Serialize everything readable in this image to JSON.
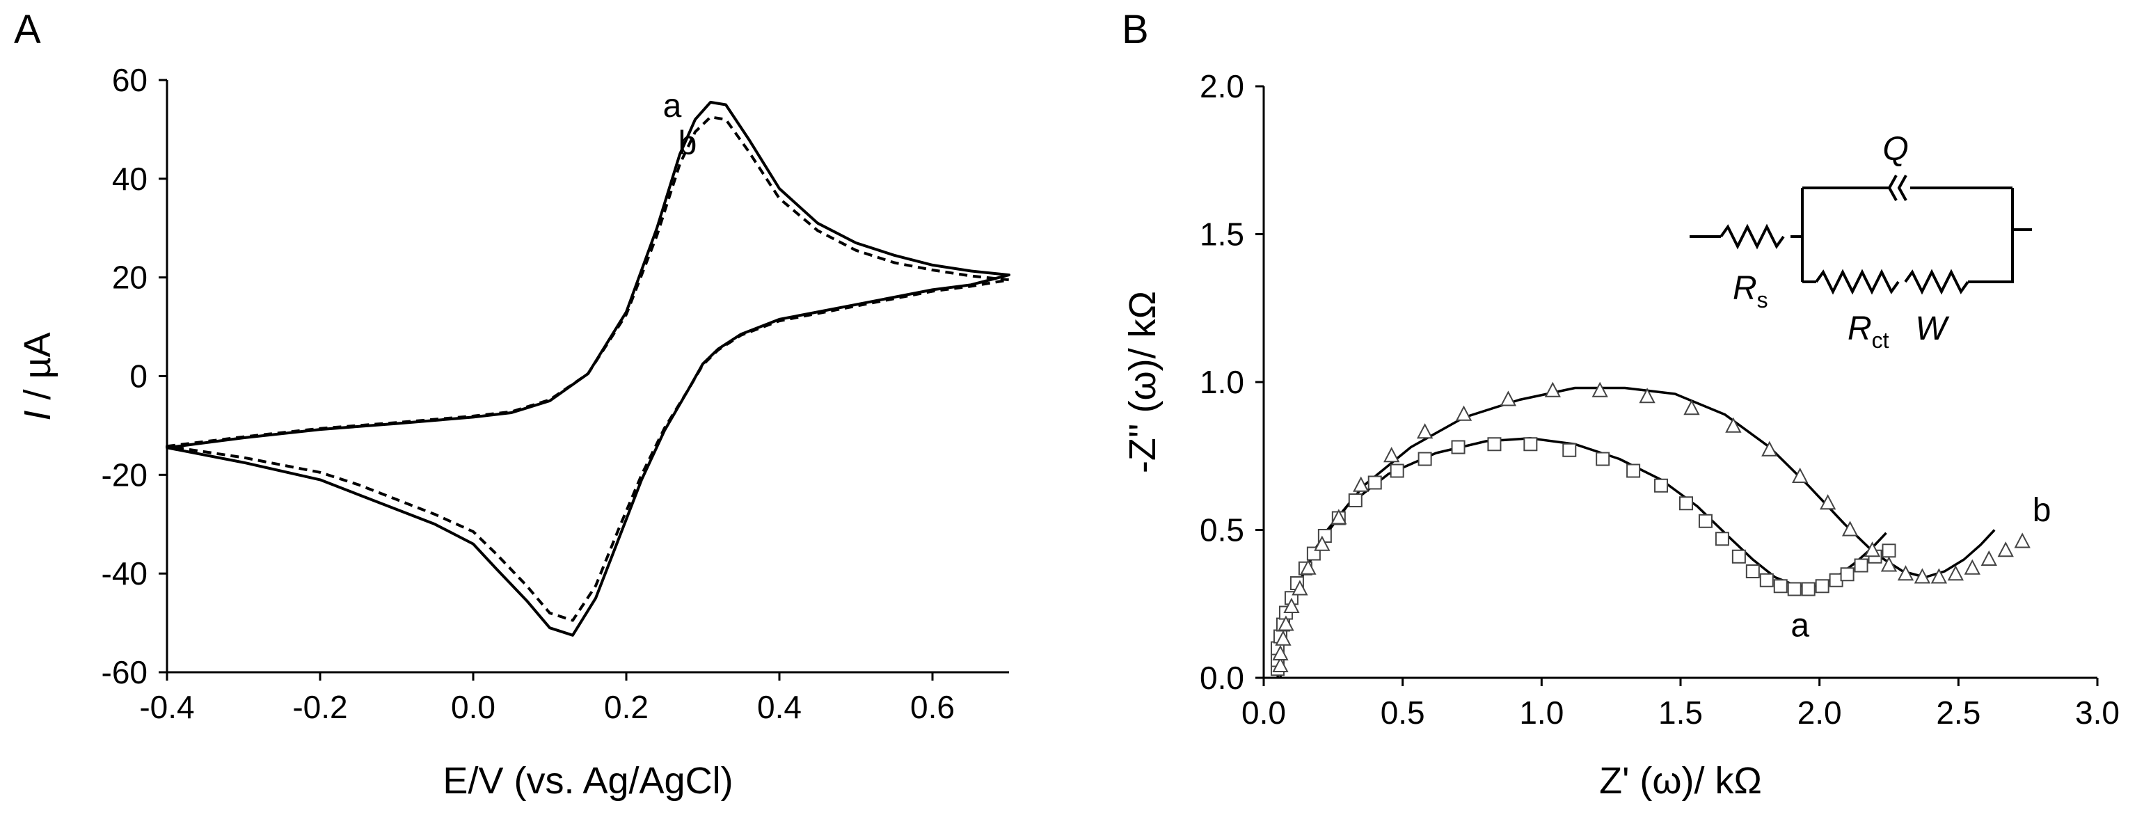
{
  "panels": {
    "a": "A",
    "b": "B"
  },
  "chart_data": [
    {
      "type": "line",
      "panel": "A",
      "xlabel": "E/V (vs. Ag/AgCl)",
      "ylabel_italic": "I",
      "ylabel_rest": " / µA",
      "xlim": [
        -0.4,
        0.7
      ],
      "ylim": [
        -60,
        60
      ],
      "xticks": [
        -0.4,
        -0.2,
        0.0,
        0.2,
        0.4,
        0.6
      ],
      "xtick_labels": [
        "-0.4",
        "-0.2",
        "0.0",
        "0.2",
        "0.4",
        "0.6"
      ],
      "yticks": [
        -60,
        -40,
        -20,
        0,
        20,
        40,
        60
      ],
      "ytick_labels": [
        "-60",
        "-40",
        "-20",
        "0",
        "20",
        "40",
        "60"
      ],
      "series": [
        {
          "name": "a",
          "style": "solid",
          "points": [
            [
              -0.4,
              -14.5
            ],
            [
              -0.3,
              -12.5
            ],
            [
              -0.2,
              -10.8
            ],
            [
              -0.1,
              -9.6
            ],
            [
              0.0,
              -8.3
            ],
            [
              0.05,
              -7.4
            ],
            [
              0.1,
              -5.0
            ],
            [
              0.15,
              0.5
            ],
            [
              0.2,
              13
            ],
            [
              0.24,
              30
            ],
            [
              0.27,
              45
            ],
            [
              0.29,
              52
            ],
            [
              0.31,
              55.5
            ],
            [
              0.33,
              55
            ],
            [
              0.36,
              48
            ],
            [
              0.4,
              38
            ],
            [
              0.45,
              31
            ],
            [
              0.5,
              27
            ],
            [
              0.55,
              24.5
            ],
            [
              0.6,
              22.5
            ],
            [
              0.65,
              21.3
            ],
            [
              0.7,
              20.5
            ],
            [
              0.65,
              18.5
            ],
            [
              0.6,
              17.5
            ],
            [
              0.5,
              14.5
            ],
            [
              0.4,
              11.5
            ],
            [
              0.35,
              8.5
            ],
            [
              0.32,
              5.5
            ],
            [
              0.3,
              2.5
            ],
            [
              0.28,
              -3
            ],
            [
              0.25,
              -11
            ],
            [
              0.22,
              -21
            ],
            [
              0.19,
              -33
            ],
            [
              0.16,
              -45
            ],
            [
              0.13,
              -52.5
            ],
            [
              0.1,
              -51
            ],
            [
              0.07,
              -45.5
            ],
            [
              0.03,
              -39
            ],
            [
              0.0,
              -34
            ],
            [
              -0.05,
              -30
            ],
            [
              -0.1,
              -27
            ],
            [
              -0.15,
              -24
            ],
            [
              -0.2,
              -21
            ],
            [
              -0.3,
              -17.5
            ],
            [
              -0.4,
              -14.5
            ]
          ]
        },
        {
          "name": "b",
          "style": "dashed",
          "points": [
            [
              -0.4,
              -14.2
            ],
            [
              -0.3,
              -12.3
            ],
            [
              -0.2,
              -10.6
            ],
            [
              -0.1,
              -9.4
            ],
            [
              0.0,
              -8.1
            ],
            [
              0.05,
              -7.2
            ],
            [
              0.1,
              -4.8
            ],
            [
              0.15,
              0.5
            ],
            [
              0.2,
              12.5
            ],
            [
              0.24,
              28.5
            ],
            [
              0.27,
              43
            ],
            [
              0.29,
              49.5
            ],
            [
              0.31,
              52.5
            ],
            [
              0.33,
              52
            ],
            [
              0.36,
              45.5
            ],
            [
              0.4,
              36
            ],
            [
              0.45,
              29.5
            ],
            [
              0.5,
              25.5
            ],
            [
              0.55,
              23
            ],
            [
              0.6,
              21.5
            ],
            [
              0.65,
              20.3
            ],
            [
              0.7,
              19.5
            ],
            [
              0.65,
              18.2
            ],
            [
              0.6,
              17.2
            ],
            [
              0.5,
              14.2
            ],
            [
              0.4,
              11.2
            ],
            [
              0.35,
              8.3
            ],
            [
              0.32,
              5.3
            ],
            [
              0.3,
              2.3
            ],
            [
              0.28,
              -3
            ],
            [
              0.25,
              -10.5
            ],
            [
              0.22,
              -20
            ],
            [
              0.19,
              -31
            ],
            [
              0.16,
              -42.5
            ],
            [
              0.13,
              -49.5
            ],
            [
              0.1,
              -48
            ],
            [
              0.07,
              -42.5
            ],
            [
              0.03,
              -36
            ],
            [
              0.0,
              -31.5
            ],
            [
              -0.05,
              -28
            ],
            [
              -0.1,
              -25
            ],
            [
              -0.15,
              -22
            ],
            [
              -0.2,
              -19.5
            ],
            [
              -0.3,
              -16.5
            ],
            [
              -0.4,
              -14.2
            ]
          ]
        }
      ],
      "annotations": [
        {
          "text": "a",
          "x": 0.26,
          "y": 52.5
        },
        {
          "text": "b",
          "x": 0.28,
          "y": 45
        }
      ]
    },
    {
      "type": "scatter",
      "panel": "B",
      "xlabel": "Z' (ω)/ kΩ",
      "ylabel": "-Z'' (ω)/ kΩ",
      "xlim": [
        0.0,
        3.0
      ],
      "ylim": [
        0.0,
        2.0
      ],
      "xticks": [
        0.0,
        0.5,
        1.0,
        1.5,
        2.0,
        2.5,
        3.0
      ],
      "xtick_labels": [
        "0.0",
        "0.5",
        "1.0",
        "1.5",
        "2.0",
        "2.5",
        "3.0"
      ],
      "yticks": [
        0.0,
        0.5,
        1.0,
        1.5,
        2.0
      ],
      "ytick_labels": [
        "0.0",
        "0.5",
        "1.0",
        "1.5",
        "2.0"
      ],
      "series": [
        {
          "name": "a",
          "marker": "square",
          "points": [
            [
              0.05,
              0.03
            ],
            [
              0.05,
              0.06
            ],
            [
              0.05,
              0.1
            ],
            [
              0.06,
              0.14
            ],
            [
              0.07,
              0.18
            ],
            [
              0.08,
              0.22
            ],
            [
              0.1,
              0.27
            ],
            [
              0.12,
              0.32
            ],
            [
              0.15,
              0.37
            ],
            [
              0.18,
              0.42
            ],
            [
              0.22,
              0.48
            ],
            [
              0.27,
              0.54
            ],
            [
              0.33,
              0.6
            ],
            [
              0.4,
              0.66
            ],
            [
              0.48,
              0.7
            ],
            [
              0.58,
              0.74
            ],
            [
              0.7,
              0.78
            ],
            [
              0.83,
              0.79
            ],
            [
              0.96,
              0.79
            ],
            [
              1.1,
              0.77
            ],
            [
              1.22,
              0.74
            ],
            [
              1.33,
              0.7
            ],
            [
              1.43,
              0.65
            ],
            [
              1.52,
              0.59
            ],
            [
              1.59,
              0.53
            ],
            [
              1.65,
              0.47
            ],
            [
              1.71,
              0.41
            ],
            [
              1.76,
              0.36
            ],
            [
              1.81,
              0.33
            ],
            [
              1.86,
              0.31
            ],
            [
              1.91,
              0.3
            ],
            [
              1.96,
              0.3
            ],
            [
              2.01,
              0.31
            ],
            [
              2.06,
              0.33
            ],
            [
              2.1,
              0.35
            ],
            [
              2.15,
              0.38
            ],
            [
              2.2,
              0.41
            ],
            [
              2.25,
              0.43
            ]
          ]
        },
        {
          "name": "b",
          "marker": "triangle",
          "points": [
            [
              0.06,
              0.04
            ],
            [
              0.06,
              0.08
            ],
            [
              0.07,
              0.13
            ],
            [
              0.08,
              0.18
            ],
            [
              0.1,
              0.24
            ],
            [
              0.13,
              0.3
            ],
            [
              0.16,
              0.37
            ],
            [
              0.21,
              0.45
            ],
            [
              0.27,
              0.54
            ],
            [
              0.35,
              0.65
            ],
            [
              0.46,
              0.75
            ],
            [
              0.58,
              0.83
            ],
            [
              0.72,
              0.89
            ],
            [
              0.88,
              0.94
            ],
            [
              1.04,
              0.97
            ],
            [
              1.21,
              0.97
            ],
            [
              1.38,
              0.95
            ],
            [
              1.54,
              0.91
            ],
            [
              1.69,
              0.85
            ],
            [
              1.82,
              0.77
            ],
            [
              1.93,
              0.68
            ],
            [
              2.03,
              0.59
            ],
            [
              2.11,
              0.5
            ],
            [
              2.19,
              0.43
            ],
            [
              2.25,
              0.38
            ],
            [
              2.31,
              0.35
            ],
            [
              2.37,
              0.34
            ],
            [
              2.43,
              0.34
            ],
            [
              2.49,
              0.35
            ],
            [
              2.55,
              0.37
            ],
            [
              2.61,
              0.4
            ],
            [
              2.67,
              0.43
            ],
            [
              2.73,
              0.46
            ]
          ]
        }
      ],
      "fits": [
        {
          "name": "a",
          "points": [
            [
              0.05,
              0.0
            ],
            [
              0.06,
              0.12
            ],
            [
              0.1,
              0.26
            ],
            [
              0.18,
              0.43
            ],
            [
              0.3,
              0.58
            ],
            [
              0.45,
              0.69
            ],
            [
              0.62,
              0.76
            ],
            [
              0.8,
              0.8
            ],
            [
              0.96,
              0.81
            ],
            [
              1.12,
              0.79
            ],
            [
              1.28,
              0.74
            ],
            [
              1.43,
              0.67
            ],
            [
              1.56,
              0.58
            ],
            [
              1.67,
              0.48
            ],
            [
              1.76,
              0.4
            ],
            [
              1.84,
              0.34
            ],
            [
              1.92,
              0.31
            ],
            [
              1.99,
              0.31
            ],
            [
              2.06,
              0.34
            ],
            [
              2.13,
              0.39
            ],
            [
              2.19,
              0.44
            ],
            [
              2.24,
              0.49
            ]
          ]
        },
        {
          "name": "b",
          "points": [
            [
              0.06,
              0.0
            ],
            [
              0.07,
              0.14
            ],
            [
              0.12,
              0.31
            ],
            [
              0.22,
              0.49
            ],
            [
              0.36,
              0.65
            ],
            [
              0.53,
              0.78
            ],
            [
              0.72,
              0.88
            ],
            [
              0.92,
              0.94
            ],
            [
              1.12,
              0.98
            ],
            [
              1.3,
              0.98
            ],
            [
              1.48,
              0.96
            ],
            [
              1.66,
              0.89
            ],
            [
              1.82,
              0.78
            ],
            [
              1.96,
              0.65
            ],
            [
              2.09,
              0.52
            ],
            [
              2.2,
              0.42
            ],
            [
              2.3,
              0.36
            ],
            [
              2.38,
              0.34
            ],
            [
              2.45,
              0.36
            ],
            [
              2.52,
              0.4
            ],
            [
              2.58,
              0.45
            ],
            [
              2.63,
              0.5
            ]
          ]
        }
      ],
      "annotations": [
        {
          "text": "a",
          "x": 1.93,
          "y": 0.14
        },
        {
          "text": "b",
          "x": 2.8,
          "y": 0.53
        }
      ],
      "inset_circuit": {
        "rs_main": "R",
        "rs_sub": "s",
        "rct_main": "R",
        "rct_sub": "ct",
        "w_label": "W",
        "q_label": "Q"
      }
    }
  ]
}
